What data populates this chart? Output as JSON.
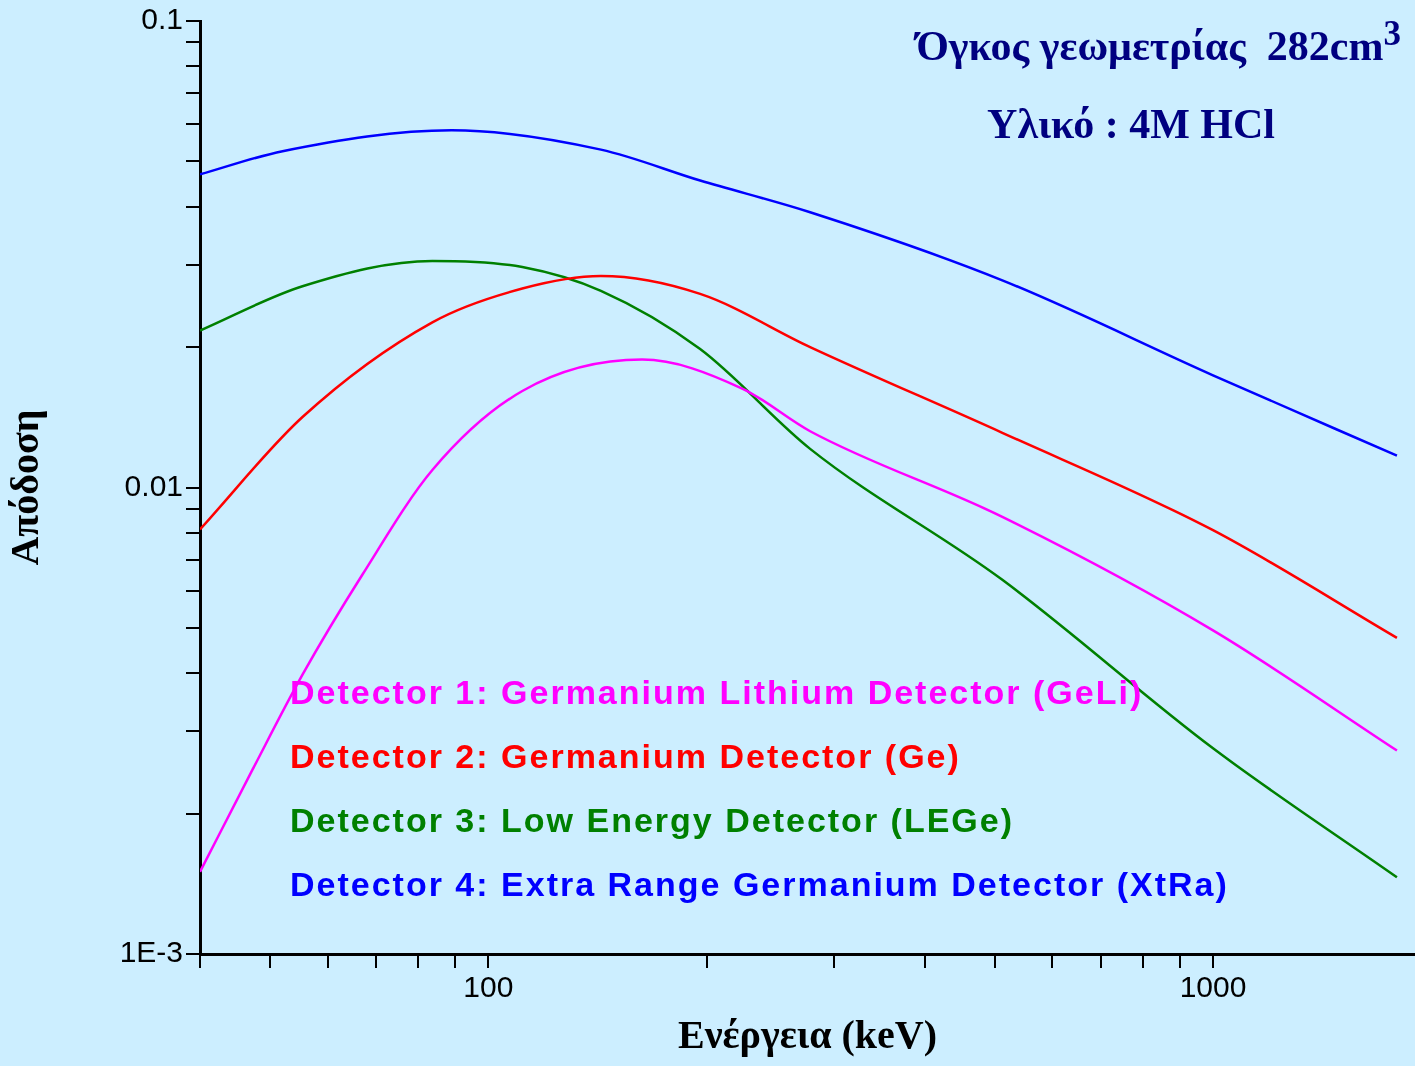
{
  "chart_data": {
    "type": "line",
    "xlabel": "Ενέργεια (keV)",
    "ylabel": "Απόδοση",
    "log": "xy",
    "grid": false,
    "legend": "bottom",
    "marker": "none",
    "line_style": "solid",
    "annotations": [
      "Όγκος γεωμετρίας  282cm$^{3}$",
      "Υλικό : 4M HCl"
    ],
    "xlim": [
      40,
      1900
    ],
    "xticks": [
      {
        "value": 40,
        "label": null
      },
      {
        "value": 50,
        "label": null
      },
      {
        "value": 60,
        "label": null
      },
      {
        "value": 70,
        "label": null
      },
      {
        "value": 80,
        "label": null
      },
      {
        "value": 90,
        "label": null
      },
      100,
      {
        "value": 200,
        "label": null
      },
      {
        "value": 300,
        "label": null
      },
      {
        "value": 400,
        "label": null
      },
      {
        "value": 500,
        "label": null
      },
      {
        "value": 600,
        "label": null
      },
      {
        "value": 700,
        "label": null
      },
      {
        "value": 800,
        "label": null
      },
      {
        "value": 900,
        "label": null
      },
      1000
    ],
    "ylim": [
      0.001,
      0.1
    ],
    "yticks": [
      {
        "value": 0.001,
        "label": "1E-3"
      },
      {
        "value": 0.002,
        "label": null
      },
      {
        "value": 0.003,
        "label": null
      },
      {
        "value": 0.004,
        "label": null
      },
      {
        "value": 0.005,
        "label": null
      },
      {
        "value": 0.006,
        "label": null
      },
      {
        "value": 0.007,
        "label": null
      },
      {
        "value": 0.008,
        "label": null
      },
      {
        "value": 0.009,
        "label": null
      },
      0.01,
      {
        "value": 0.02,
        "label": null
      },
      {
        "value": 0.03,
        "label": null
      },
      {
        "value": 0.04,
        "label": null
      },
      {
        "value": 0.05,
        "label": null
      },
      {
        "value": 0.06,
        "label": null
      },
      {
        "value": 0.07,
        "label": null
      },
      {
        "value": 0.08,
        "label": null
      },
      {
        "value": 0.09,
        "label": null
      },
      0.1
    ],
    "series": [
      {
        "name": "Detector 1: Germanium Lithium Detector (GeLi)",
        "color": "#ff00ff",
        "x": [
          40,
          47.3,
          55.4,
          67,
          83.7,
          111.4,
          163,
          224,
          278,
          512,
          1000,
          1794
        ],
        "values": [
          0.0015,
          0.00249,
          0.00397,
          0.0065,
          0.0109,
          0.0161,
          0.0188,
          0.0163,
          0.0132,
          0.00865,
          0.00494,
          0.00273
        ]
      },
      {
        "name": "Detector 2: Germanium Detector (Ge)",
        "color": "#ff0000",
        "x": [
          40,
          55.4,
          83.7,
          111.4,
          143,
          196,
          278,
          512,
          1000,
          1794
        ],
        "values": [
          0.00813,
          0.01416,
          0.0226,
          0.0267,
          0.0284,
          0.026,
          0.02,
          0.0131,
          0.0081,
          0.00476
        ]
      },
      {
        "name": "Detector 3: Low Energy Detector (LEGe)",
        "color": "#008000",
        "x": [
          40,
          55.4,
          83.7,
          111.4,
          143,
          196,
          278,
          512,
          1000,
          1794
        ],
        "values": [
          0.0217,
          0.027,
          0.0306,
          0.0297,
          0.0264,
          0.0198,
          0.0121,
          0.00634,
          0.00276,
          0.00146
        ]
      },
      {
        "name": "Detector 4: Extra Range Germanium Detector (XtRa)",
        "color": "#0000ff",
        "x": [
          40,
          52,
          89,
          143,
          196,
          278,
          512,
          1000,
          1794
        ],
        "values": [
          0.0469,
          0.0526,
          0.0583,
          0.053,
          0.0455,
          0.0389,
          0.0278,
          0.0174,
          0.0117
        ]
      }
    ]
  }
}
